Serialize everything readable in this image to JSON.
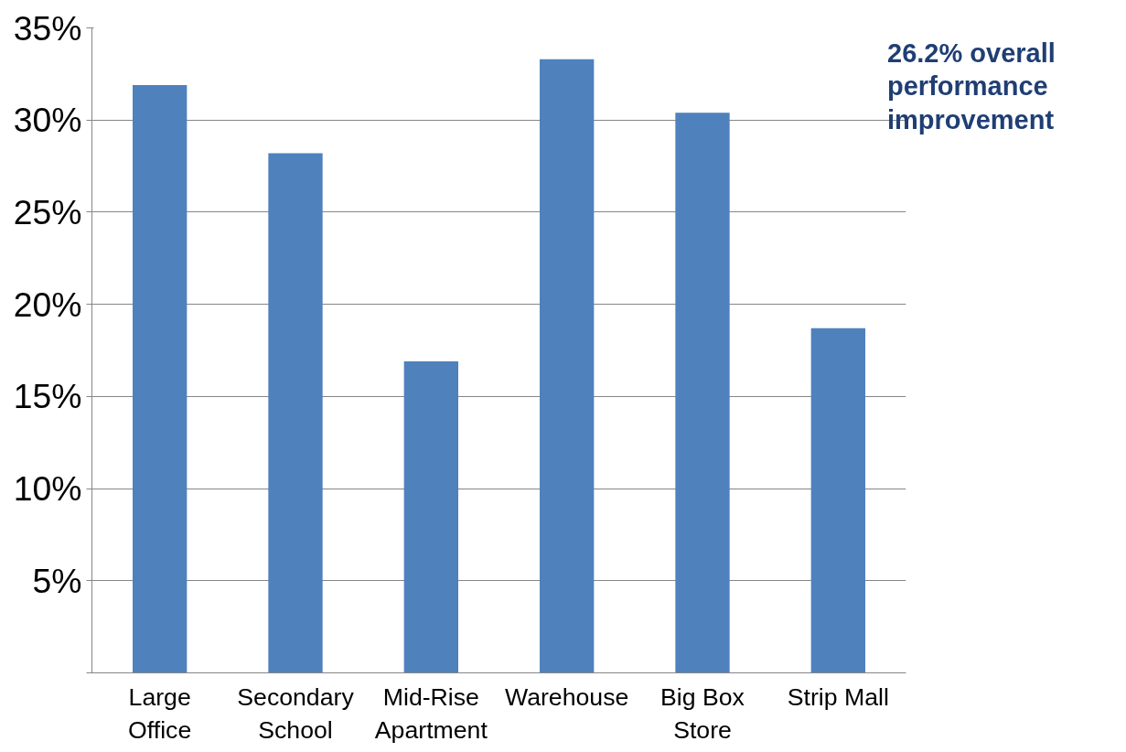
{
  "chart_data": {
    "type": "bar",
    "categories": [
      "Large\nOffice",
      "Secondary\nSchool",
      "Mid-Rise\nApartment",
      "Warehouse",
      "Big Box\nStore",
      "Strip Mall"
    ],
    "values": [
      31.9,
      28.2,
      16.9,
      33.3,
      30.4,
      18.7
    ],
    "color": "#4f81bd",
    "ylim": [
      0,
      35
    ],
    "yticks": [
      {
        "value": 0,
        "label": null
      },
      {
        "value": 5,
        "label": "5%"
      },
      {
        "value": 10,
        "label": "10%"
      },
      {
        "value": 15,
        "label": "15%"
      },
      {
        "value": 20,
        "label": "20%"
      },
      {
        "value": 25,
        "label": "25%"
      },
      {
        "value": 30,
        "label": "30%"
      },
      {
        "value": 35,
        "label": "35%"
      }
    ],
    "grid": "y",
    "annotations": [
      "26.2% overall\nperformance\nimprovement"
    ]
  }
}
